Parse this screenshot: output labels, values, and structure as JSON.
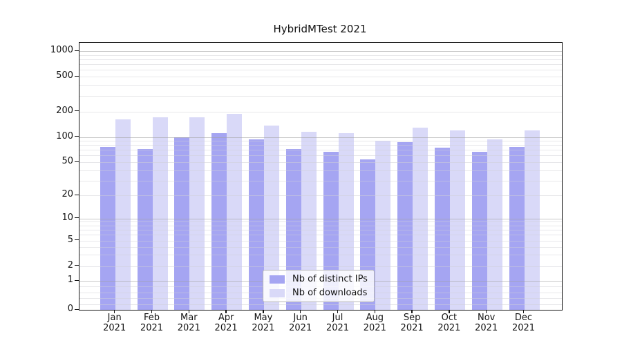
{
  "title": "HybridMTest 2021",
  "colors": {
    "background": "#ffffff",
    "series_distinct_ips": "#a5a5f2",
    "series_downloads": "#d9d9f8",
    "spine": "#111111",
    "grid_major": "#c6c6c6",
    "grid_minor": "#e8e8eb",
    "legend_border": "#b5b5b5",
    "text": "#141414"
  },
  "chart_data": {
    "type": "bar",
    "title": "HybridMTest 2021",
    "categories": [
      {
        "month": "Jan",
        "year": "2021"
      },
      {
        "month": "Feb",
        "year": "2021"
      },
      {
        "month": "Mar",
        "year": "2021"
      },
      {
        "month": "Apr",
        "year": "2021"
      },
      {
        "month": "May",
        "year": "2021"
      },
      {
        "month": "Jun",
        "year": "2021"
      },
      {
        "month": "Jul",
        "year": "2021"
      },
      {
        "month": "Aug",
        "year": "2021"
      },
      {
        "month": "Sep",
        "year": "2021"
      },
      {
        "month": "Oct",
        "year": "2021"
      },
      {
        "month": "Nov",
        "year": "2021"
      },
      {
        "month": "Dec",
        "year": "2021"
      }
    ],
    "series": [
      {
        "name": "Nb of distinct IPs",
        "color": "#a5a5f2",
        "values": [
          76,
          72,
          99,
          110,
          94,
          72,
          67,
          54,
          87,
          75,
          66,
          76
        ]
      },
      {
        "name": "Nb of downloads",
        "color": "#d9d9f8",
        "values": [
          160,
          170,
          170,
          186,
          136,
          115,
          111,
          90,
          129,
          120,
          94,
          119
        ]
      }
    ],
    "xlabel": "",
    "ylabel": "",
    "y_axis": {
      "scale": "symlog",
      "ylim": [
        0,
        1250
      ],
      "tick_labels": [
        "1000",
        "500",
        "200",
        "100",
        "50",
        "20",
        "10",
        "5",
        "2",
        "1",
        "0"
      ],
      "tick_values": [
        1000,
        500,
        200,
        100,
        50,
        20,
        10,
        5,
        2,
        1,
        0
      ],
      "major_grid_values": [
        1,
        10,
        100,
        1000
      ],
      "minor_grid_values": [
        0.2,
        0.4,
        0.6,
        0.8,
        2,
        3,
        4,
        5,
        6,
        7,
        8,
        9,
        20,
        30,
        40,
        50,
        60,
        70,
        80,
        90,
        200,
        300,
        400,
        500,
        600,
        700,
        800,
        900
      ]
    },
    "grid": true,
    "legend_position": "lower center"
  }
}
